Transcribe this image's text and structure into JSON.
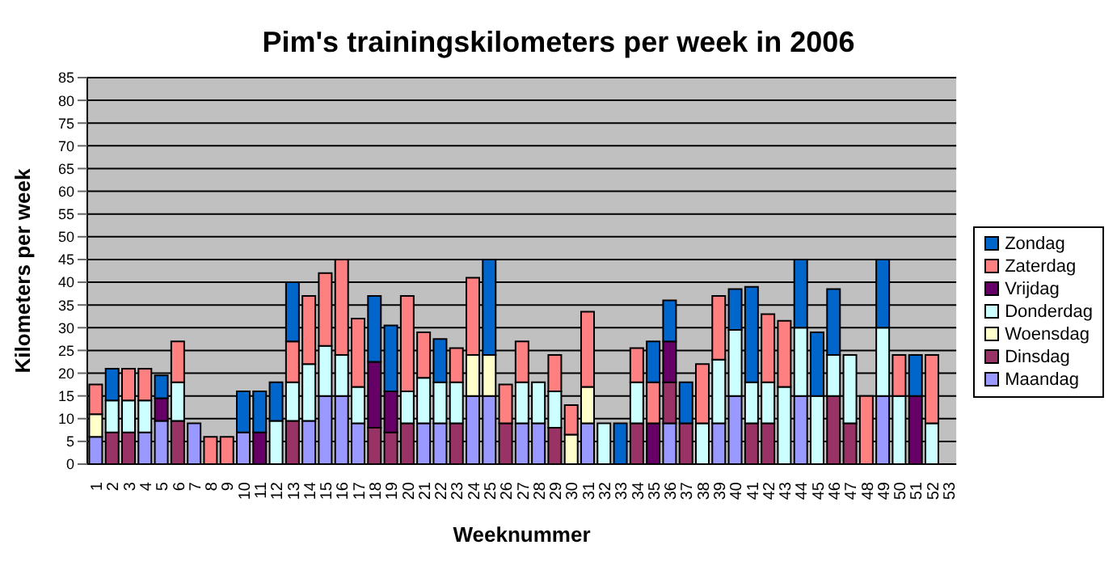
{
  "chart_data": {
    "type": "bar",
    "stacked": true,
    "title": "Pim's  trainingskilometers per week in 2006",
    "xlabel": "Weeknummer",
    "ylabel": "Kilometers per week",
    "categories": [
      "1",
      "2",
      "3",
      "4",
      "5",
      "6",
      "7",
      "8",
      "9",
      "10",
      "11",
      "12",
      "13",
      "14",
      "15",
      "16",
      "17",
      "18",
      "19",
      "20",
      "21",
      "22",
      "23",
      "24",
      "25",
      "26",
      "27",
      "28",
      "29",
      "30",
      "31",
      "32",
      "33",
      "34",
      "35",
      "36",
      "37",
      "38",
      "39",
      "40",
      "41",
      "42",
      "43",
      "44",
      "45",
      "46",
      "47",
      "48",
      "49",
      "50",
      "51",
      "52",
      "53"
    ],
    "series": [
      {
        "name": "Maandag",
        "color": "#9999ff",
        "values": [
          6,
          null,
          null,
          7,
          9.5,
          null,
          9,
          null,
          null,
          7,
          null,
          null,
          null,
          9.5,
          15,
          15,
          9,
          null,
          null,
          null,
          9,
          9,
          null,
          15,
          15,
          null,
          9,
          9,
          null,
          null,
          9,
          null,
          null,
          null,
          null,
          9,
          null,
          null,
          9,
          15,
          null,
          null,
          null,
          15,
          null,
          null,
          null,
          null,
          15,
          null,
          null,
          null,
          null
        ]
      },
      {
        "name": "Dinsdag",
        "color": "#993366",
        "values": [
          null,
          7,
          7,
          null,
          null,
          9.5,
          null,
          null,
          null,
          null,
          null,
          null,
          9.5,
          null,
          null,
          null,
          null,
          8,
          7,
          9,
          null,
          null,
          9,
          null,
          null,
          9,
          null,
          null,
          8,
          null,
          null,
          null,
          null,
          9,
          null,
          9,
          9,
          null,
          null,
          null,
          9,
          9,
          null,
          null,
          null,
          15,
          9,
          null,
          null,
          null,
          null,
          null,
          null
        ]
      },
      {
        "name": "Woensdag",
        "color": "#ffffcc",
        "values": [
          5,
          null,
          null,
          null,
          null,
          null,
          null,
          null,
          null,
          null,
          null,
          null,
          null,
          null,
          null,
          null,
          null,
          null,
          null,
          null,
          null,
          null,
          null,
          9,
          9,
          null,
          null,
          null,
          null,
          6.5,
          8,
          null,
          null,
          null,
          null,
          null,
          null,
          null,
          null,
          null,
          null,
          null,
          null,
          null,
          null,
          null,
          null,
          null,
          null,
          null,
          null,
          null,
          null
        ]
      },
      {
        "name": "Donderdag",
        "color": "#ccffff",
        "values": [
          null,
          7,
          7,
          7,
          null,
          8.5,
          null,
          null,
          null,
          null,
          null,
          9.5,
          8.5,
          12.5,
          11,
          9,
          8,
          null,
          null,
          7,
          10,
          9,
          9,
          null,
          null,
          null,
          9,
          9,
          8,
          null,
          null,
          9,
          null,
          9,
          null,
          null,
          null,
          9,
          14,
          14.5,
          9,
          9,
          17,
          15,
          15,
          9,
          15,
          null,
          15,
          15,
          null,
          9,
          null
        ]
      },
      {
        "name": "Vrijdag",
        "color": "#660066",
        "values": [
          null,
          null,
          null,
          null,
          5,
          null,
          null,
          null,
          null,
          null,
          7,
          null,
          null,
          null,
          null,
          null,
          null,
          14.5,
          9,
          null,
          null,
          null,
          null,
          null,
          null,
          null,
          null,
          null,
          null,
          null,
          null,
          null,
          null,
          null,
          9,
          9,
          null,
          null,
          null,
          null,
          null,
          null,
          null,
          null,
          null,
          null,
          null,
          null,
          null,
          null,
          15,
          null,
          null
        ]
      },
      {
        "name": "Zaterdag",
        "color": "#ff8080",
        "values": [
          6.5,
          null,
          7,
          7,
          null,
          9,
          null,
          6,
          6,
          null,
          null,
          null,
          9,
          15,
          16,
          21,
          15,
          null,
          null,
          21,
          10,
          null,
          7.5,
          17,
          null,
          8.5,
          9,
          null,
          8,
          6.5,
          16.5,
          null,
          null,
          7.5,
          9,
          null,
          null,
          13,
          14,
          null,
          null,
          15,
          14.5,
          null,
          null,
          null,
          null,
          15,
          null,
          9,
          null,
          15,
          null
        ]
      },
      {
        "name": "Zondag",
        "color": "#0066cc",
        "values": [
          null,
          7,
          null,
          null,
          5,
          null,
          null,
          null,
          null,
          9,
          9,
          8.5,
          13,
          null,
          null,
          null,
          null,
          14.5,
          14.5,
          null,
          null,
          9.5,
          null,
          null,
          21,
          null,
          null,
          null,
          null,
          null,
          null,
          null,
          9,
          null,
          9,
          9,
          9,
          null,
          null,
          9,
          21,
          null,
          null,
          15,
          14,
          14.5,
          null,
          null,
          15,
          null,
          9,
          null,
          null
        ]
      }
    ],
    "ylim": [
      0,
      85
    ],
    "yticks": [
      0,
      5,
      10,
      15,
      20,
      25,
      30,
      35,
      40,
      45,
      50,
      55,
      60,
      65,
      70,
      75,
      80,
      85
    ],
    "grid": "y",
    "legend": "right"
  }
}
